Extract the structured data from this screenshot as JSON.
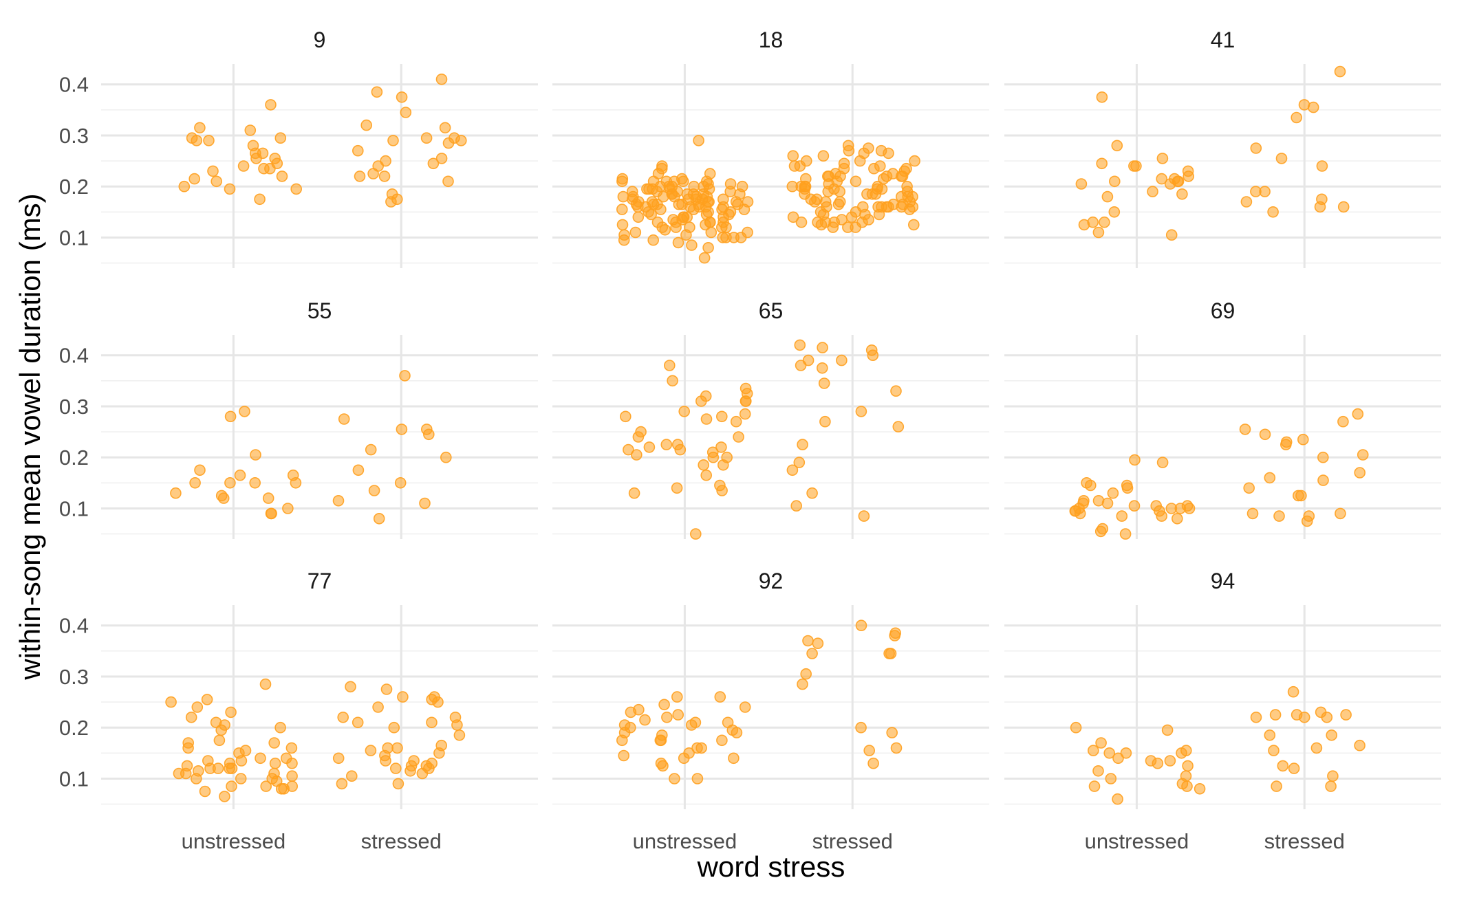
{
  "chart_data": {
    "type": "scatter",
    "xlabel": "word stress",
    "ylabel": "within-song mean vowel duration (ms)",
    "categories": [
      "unstressed",
      "stressed"
    ],
    "yticks": [
      "0.1",
      "0.2",
      "0.3",
      "0.4"
    ],
    "ylim": [
      0.04,
      0.44
    ],
    "point_color": "#FFA01E",
    "grid": true,
    "panels": [
      {
        "label": "9",
        "unstressed": [
          0.28,
          0.29,
          0.31,
          0.195,
          0.255,
          0.265,
          0.295,
          0.22,
          0.175,
          0.255,
          0.235,
          0.23,
          0.36,
          0.215,
          0.24,
          0.315,
          0.29,
          0.235,
          0.295,
          0.245,
          0.2,
          0.195,
          0.265,
          0.21
        ],
        "stressed": [
          0.225,
          0.22,
          0.295,
          0.21,
          0.17,
          0.185,
          0.255,
          0.22,
          0.27,
          0.24,
          0.25,
          0.375,
          0.29,
          0.175,
          0.245,
          0.32,
          0.29,
          0.285,
          0.41,
          0.385,
          0.345,
          0.315,
          0.295
        ]
      },
      {
        "label": "18",
        "unstressed": [
          0.11,
          0.175,
          0.18,
          0.17,
          0.2,
          0.225,
          0.21,
          0.195,
          0.185,
          0.18,
          0.1,
          0.12,
          0.105,
          0.095,
          0.14,
          0.16,
          0.155,
          0.13,
          0.19,
          0.21,
          0.195,
          0.175,
          0.135,
          0.12,
          0.145,
          0.16,
          0.13,
          0.095,
          0.085,
          0.09,
          0.105,
          0.125,
          0.225,
          0.21,
          0.2,
          0.195,
          0.185,
          0.17,
          0.29,
          0.18,
          0.175,
          0.2,
          0.185,
          0.13,
          0.08,
          0.165,
          0.12,
          0.11,
          0.14,
          0.16,
          0.185,
          0.21,
          0.205,
          0.2,
          0.195,
          0.19,
          0.185,
          0.175,
          0.17,
          0.165,
          0.16,
          0.155,
          0.15,
          0.145,
          0.14,
          0.135,
          0.13,
          0.125,
          0.12,
          0.11,
          0.1,
          0.155,
          0.17,
          0.18,
          0.19,
          0.2,
          0.21,
          0.165,
          0.175,
          0.185,
          0.15,
          0.145,
          0.14,
          0.06,
          0.165,
          0.17,
          0.16,
          0.155,
          0.15,
          0.18,
          0.19,
          0.24,
          0.205,
          0.21,
          0.2,
          0.195,
          0.18,
          0.165,
          0.16,
          0.155,
          0.13,
          0.14,
          0.12,
          0.1,
          0.235,
          0.215,
          0.165,
          0.17,
          0.1,
          0.115,
          0.215,
          0.165
        ],
        "stressed": [
          0.165,
          0.13,
          0.215,
          0.185,
          0.2,
          0.22,
          0.145,
          0.16,
          0.195,
          0.175,
          0.27,
          0.235,
          0.22,
          0.2,
          0.18,
          0.13,
          0.125,
          0.13,
          0.15,
          0.16,
          0.18,
          0.125,
          0.195,
          0.22,
          0.225,
          0.13,
          0.12,
          0.27,
          0.21,
          0.195,
          0.185,
          0.145,
          0.25,
          0.16,
          0.26,
          0.2,
          0.14,
          0.12,
          0.225,
          0.2,
          0.135,
          0.13,
          0.12,
          0.245,
          0.235,
          0.265,
          0.205,
          0.19,
          0.2,
          0.185,
          0.17,
          0.22,
          0.26,
          0.24,
          0.22,
          0.19,
          0.18,
          0.16,
          0.14,
          0.135,
          0.21,
          0.175,
          0.165,
          0.16,
          0.17,
          0.24,
          0.25,
          0.265,
          0.28,
          0.235,
          0.22,
          0.19,
          0.16,
          0.145,
          0.275,
          0.25,
          0.24,
          0.23,
          0.215,
          0.2,
          0.185,
          0.17,
          0.165,
          0.16,
          0.155,
          0.15,
          0.16,
          0.17,
          0.195
        ]
      },
      {
        "label": "41",
        "unstressed": [
          0.245,
          0.22,
          0.215,
          0.18,
          0.15,
          0.185,
          0.105,
          0.215,
          0.255,
          0.11,
          0.21,
          0.21,
          0.205,
          0.375,
          0.13,
          0.125,
          0.13,
          0.28,
          0.24,
          0.24,
          0.205,
          0.21,
          0.19,
          0.23
        ],
        "stressed": [
          0.19,
          0.17,
          0.15,
          0.425,
          0.36,
          0.175,
          0.355,
          0.19,
          0.16,
          0.335,
          0.24,
          0.16,
          0.255,
          0.275
        ]
      },
      {
        "label": "55",
        "unstressed": [
          0.29,
          0.165,
          0.12,
          0.12,
          0.13,
          0.15,
          0.09,
          0.09,
          0.175,
          0.15,
          0.15,
          0.1,
          0.125,
          0.15,
          0.165,
          0.205,
          0.28
        ],
        "stressed": [
          0.11,
          0.36,
          0.255,
          0.255,
          0.245,
          0.135,
          0.215,
          0.275,
          0.175,
          0.2,
          0.15,
          0.08,
          0.115
        ]
      },
      {
        "label": "65",
        "unstressed": [
          0.13,
          0.31,
          0.185,
          0.05,
          0.285,
          0.28,
          0.21,
          0.2,
          0.31,
          0.185,
          0.165,
          0.24,
          0.135,
          0.225,
          0.32,
          0.29,
          0.27,
          0.215,
          0.28,
          0.275,
          0.205,
          0.25,
          0.325,
          0.35,
          0.225,
          0.215,
          0.24,
          0.14,
          0.31,
          0.335,
          0.22,
          0.145,
          0.38,
          0.22,
          0.2
        ],
        "stressed": [
          0.105,
          0.175,
          0.33,
          0.39,
          0.26,
          0.41,
          0.415,
          0.39,
          0.42,
          0.085,
          0.29,
          0.4,
          0.19,
          0.345,
          0.375,
          0.38,
          0.13,
          0.225,
          0.27
        ]
      },
      {
        "label": "69",
        "unstressed": [
          0.1,
          0.15,
          0.195,
          0.1,
          0.09,
          0.19,
          0.095,
          0.05,
          0.095,
          0.145,
          0.115,
          0.085,
          0.08,
          0.105,
          0.055,
          0.105,
          0.06,
          0.1,
          0.095,
          0.11,
          0.13,
          0.085,
          0.145,
          0.14,
          0.11,
          0.1,
          0.105,
          0.115
        ],
        "stressed": [
          0.075,
          0.17,
          0.27,
          0.245,
          0.14,
          0.16,
          0.285,
          0.09,
          0.225,
          0.205,
          0.085,
          0.09,
          0.23,
          0.155,
          0.235,
          0.125,
          0.125,
          0.2,
          0.085,
          0.255
        ]
      },
      {
        "label": "77",
        "unstressed": [
          0.135,
          0.08,
          0.085,
          0.2,
          0.21,
          0.23,
          0.17,
          0.15,
          0.12,
          0.13,
          0.1,
          0.085,
          0.195,
          0.11,
          0.105,
          0.12,
          0.175,
          0.205,
          0.17,
          0.1,
          0.14,
          0.085,
          0.13,
          0.11,
          0.155,
          0.14,
          0.255,
          0.12,
          0.125,
          0.095,
          0.075,
          0.11,
          0.16,
          0.13,
          0.22,
          0.25,
          0.285,
          0.135,
          0.08,
          0.24,
          0.16,
          0.12,
          0.115,
          0.065,
          0.1
        ],
        "stressed": [
          0.16,
          0.12,
          0.09,
          0.13,
          0.11,
          0.125,
          0.22,
          0.26,
          0.24,
          0.21,
          0.28,
          0.135,
          0.155,
          0.2,
          0.09,
          0.185,
          0.26,
          0.15,
          0.165,
          0.12,
          0.255,
          0.125,
          0.22,
          0.205,
          0.21,
          0.14,
          0.135,
          0.275,
          0.105,
          0.145,
          0.16,
          0.115,
          0.25
        ]
      },
      {
        "label": "92",
        "unstressed": [
          0.15,
          0.175,
          0.21,
          0.145,
          0.16,
          0.205,
          0.22,
          0.245,
          0.2,
          0.235,
          0.125,
          0.24,
          0.21,
          0.14,
          0.1,
          0.195,
          0.23,
          0.26,
          0.225,
          0.26,
          0.175,
          0.175,
          0.19,
          0.13,
          0.1,
          0.215,
          0.16,
          0.14,
          0.205,
          0.19,
          0.185,
          0.175
        ],
        "stressed": [
          0.16,
          0.365,
          0.345,
          0.2,
          0.345,
          0.38,
          0.155,
          0.385,
          0.37,
          0.19,
          0.285,
          0.13,
          0.345,
          0.305,
          0.4
        ]
      },
      {
        "label": "94",
        "unstressed": [
          0.15,
          0.105,
          0.135,
          0.17,
          0.09,
          0.15,
          0.125,
          0.13,
          0.15,
          0.195,
          0.2,
          0.155,
          0.08,
          0.135,
          0.1,
          0.085,
          0.155,
          0.115,
          0.06,
          0.085,
          0.14
        ],
        "stressed": [
          0.085,
          0.185,
          0.085,
          0.23,
          0.16,
          0.12,
          0.225,
          0.27,
          0.225,
          0.155,
          0.165,
          0.105,
          0.125,
          0.22,
          0.22,
          0.225,
          0.22,
          0.185
        ]
      }
    ]
  }
}
